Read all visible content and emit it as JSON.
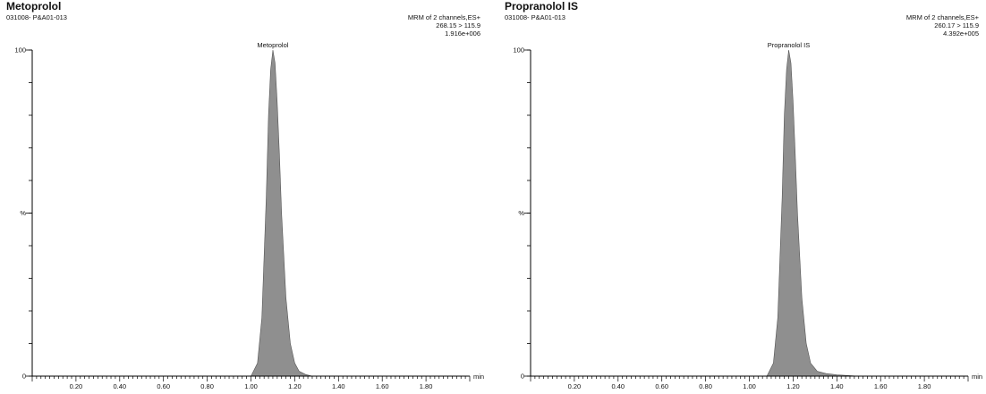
{
  "colors": {
    "peak_fill": "#8f8f8f",
    "axis": "#000000"
  },
  "chart_data": [
    {
      "type": "area",
      "title": "Metoprolol",
      "sample": "031008- P&A01-013",
      "info_lines": [
        "MRM of 2 channels,ES+",
        "268.15 > 115.9",
        "1.916e+006"
      ],
      "peak_label": "Metoprolol",
      "xlabel": "min",
      "xlim": [
        0.0,
        2.0
      ],
      "ylim": [
        0,
        100
      ],
      "x_ticks": [
        "0.20",
        "0.40",
        "0.60",
        "0.80",
        "1.00",
        "1.20",
        "1.40",
        "1.60",
        "1.80"
      ],
      "y_ticks": [
        {
          "value": 0,
          "label": "0"
        },
        {
          "value": 50,
          "label": "%"
        },
        {
          "value": 100,
          "label": "100"
        }
      ],
      "series": [
        {
          "x": [
            1.0,
            1.03,
            1.05,
            1.07,
            1.08,
            1.09,
            1.1,
            1.11,
            1.12,
            1.13,
            1.14,
            1.16,
            1.18,
            1.2,
            1.22,
            1.25,
            1.28
          ],
          "y": [
            0,
            4,
            18,
            55,
            80,
            94,
            100,
            96,
            84,
            68,
            50,
            24,
            10,
            4,
            1.5,
            0.5,
            0
          ]
        }
      ]
    },
    {
      "type": "area",
      "title": "Propranolol IS",
      "sample": "031008- P&A01-013",
      "info_lines": [
        "MRM of 2 channels,ES+",
        "260.17 > 115.9",
        "4.392e+005"
      ],
      "peak_label": "Propranolol IS",
      "xlabel": "min",
      "xlim": [
        0.0,
        2.0
      ],
      "ylim": [
        0,
        100
      ],
      "x_ticks": [
        "0.20",
        "0.40",
        "0.60",
        "0.80",
        "1.00",
        "1.20",
        "1.40",
        "1.60",
        "1.80"
      ],
      "y_ticks": [
        {
          "value": 0,
          "label": "0"
        },
        {
          "value": 50,
          "label": "%"
        },
        {
          "value": 100,
          "label": "100"
        }
      ],
      "series": [
        {
          "x": [
            1.08,
            1.11,
            1.13,
            1.15,
            1.16,
            1.17,
            1.18,
            1.19,
            1.2,
            1.21,
            1.22,
            1.24,
            1.26,
            1.28,
            1.31,
            1.35,
            1.4,
            1.45,
            1.5
          ],
          "y": [
            0,
            4,
            18,
            55,
            80,
            94,
            100,
            96,
            84,
            68,
            50,
            24,
            10,
            4,
            1.5,
            0.8,
            0.4,
            0.2,
            0
          ]
        }
      ]
    }
  ]
}
